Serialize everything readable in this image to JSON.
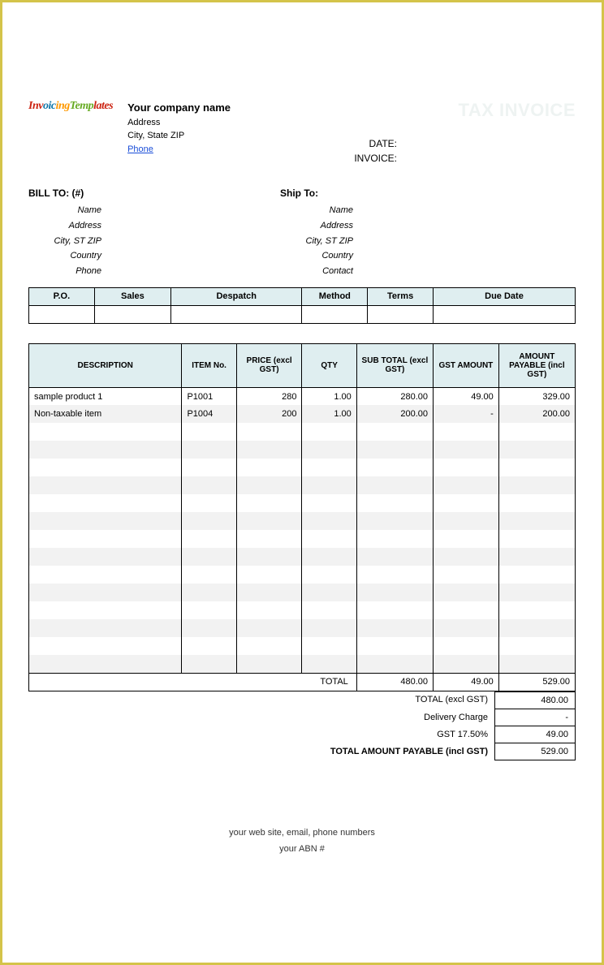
{
  "header": {
    "logo_text": "InvoicingTemplates",
    "company_name": "Your company name",
    "address": "Address",
    "city_state_zip": "City, State ZIP",
    "phone": "Phone",
    "tax_invoice": "TAX INVOICE",
    "date_label": "DATE:",
    "invoice_label": "INVOICE:"
  },
  "bill_to": {
    "title": "BILL TO:  (#)",
    "name": "Name",
    "address": "Address",
    "city": "City, ST ZIP",
    "country": "Country",
    "phone": "Phone"
  },
  "ship_to": {
    "title": "Ship To:",
    "name": "Name",
    "address": "Address",
    "city": "City, ST ZIP",
    "country": "Country",
    "contact": "Contact"
  },
  "info_headers": {
    "po": "P.O.",
    "sales": "Sales",
    "despatch": "Despatch",
    "method": "Method",
    "terms": "Terms",
    "due": "Due Date"
  },
  "item_headers": {
    "desc": "DESCRIPTION",
    "item": "ITEM No.",
    "price": "PRICE (excl GST)",
    "qty": "QTY",
    "sub": "SUB TOTAL (excl GST)",
    "gst": "GST AMOUNT",
    "amt": "AMOUNT PAYABLE (incl GST)"
  },
  "items": [
    {
      "desc": "sample product 1",
      "item": "P1001",
      "price": "280",
      "qty": "1.00",
      "sub": "280.00",
      "gst": "49.00",
      "amt": "329.00"
    },
    {
      "desc": "Non-taxable  item",
      "item": "P1004",
      "price": "200",
      "qty": "1.00",
      "sub": "200.00",
      "gst": "-",
      "amt": "200.00"
    }
  ],
  "totals": {
    "total_label": "TOTAL",
    "sub": "480.00",
    "gst": "49.00",
    "amt": "529.00"
  },
  "summary": {
    "total_excl_label": "TOTAL (excl GST)",
    "total_excl": "480.00",
    "delivery_label": "Delivery Charge",
    "delivery": "-",
    "gst_label": "GST    17.50%",
    "gst": "49.00",
    "total_incl_label": "TOTAL AMOUNT PAYABLE (incl GST)",
    "total_incl": "529.00"
  },
  "footer": {
    "line1": "your web site, email, phone numbers",
    "line2": "your ABN #"
  }
}
